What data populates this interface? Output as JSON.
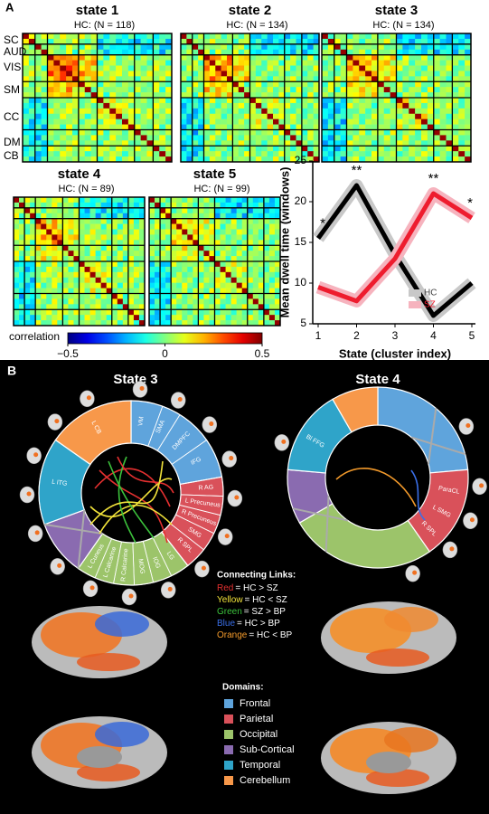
{
  "panel_a": {
    "label": "A",
    "states": [
      {
        "title": "state 1",
        "subtitle": "HC: (N = 118)"
      },
      {
        "title": "state 2",
        "subtitle": "HC: (N = 134)"
      },
      {
        "title": "state 3",
        "subtitle": "HC: (N = 134)"
      },
      {
        "title": "state 4",
        "subtitle": "HC: (N = 89)"
      },
      {
        "title": "state 5",
        "subtitle": "HC: (N = 99)"
      }
    ],
    "row_labels": [
      "SC",
      "AUD",
      "VIS",
      "SM",
      "CC",
      "DM",
      "CB"
    ],
    "colorbar": {
      "title": "correlation",
      "lim": [
        -0.5,
        0.5
      ],
      "ticks": [
        {
          "value": -0.5,
          "label": "−0.5"
        },
        0,
        0.5
      ]
    }
  },
  "chart_data": {
    "type": "line",
    "ylabel": "Mean dwell time (windows)",
    "xlabel": "State (cluster index)",
    "x": [
      1,
      2,
      3,
      4,
      5
    ],
    "xlim": [
      1,
      5
    ],
    "xticks": [
      1,
      2,
      3,
      4,
      5
    ],
    "ylim": [
      5,
      25
    ],
    "yticks": [
      5,
      10,
      15,
      20,
      25
    ],
    "series": [
      {
        "name": "HC",
        "color": "#000000",
        "band_color": "#c8c8c8",
        "values": [
          15.5,
          22,
          13.5,
          6,
          10
        ]
      },
      {
        "name": "SZ",
        "color": "#ee1c2e",
        "band_color": "#f6b3be",
        "values": [
          9.5,
          7.8,
          13,
          21,
          18
        ]
      }
    ],
    "significance": [
      "*",
      "**",
      null,
      "**",
      "*"
    ],
    "legend": "lower right"
  },
  "panel_b": {
    "label": "B",
    "states": [
      {
        "title": "State 3",
        "segments": [
          "VM",
          "SMA",
          "DMPFC",
          "IFG",
          "R AG",
          "L Precuneus",
          "R Precuneus",
          "SMG",
          "R SPL",
          "LG",
          "IOG",
          "MOG",
          "R Calcarine",
          "L Calcarine",
          "L Cuneus",
          "L ITG",
          "L CB"
        ]
      },
      {
        "title": "State 4",
        "segments": [
          "ParaCL",
          "L SMG",
          "R SPL",
          "Bl FFG"
        ]
      }
    ],
    "links": {
      "title": "Connecting Links:",
      "items": [
        {
          "color_word": "Red",
          "text": "= HC > SZ",
          "color": "#e53030"
        },
        {
          "color_word": "Yellow",
          "text": "= HC < SZ",
          "color": "#f2e33a"
        },
        {
          "color_word": "Green",
          "text": "= SZ > BP",
          "color": "#3cc23c"
        },
        {
          "color_word": "Blue",
          "text": "= HC > BP",
          "color": "#3a6fe8"
        },
        {
          "color_word": "Orange",
          "text": "= HC < BP",
          "color": "#f39a2b"
        }
      ]
    },
    "domains": {
      "title": "Domains:",
      "items": [
        {
          "name": "Frontal",
          "color": "#5fa4dc"
        },
        {
          "name": "Parietal",
          "color": "#d9515a"
        },
        {
          "name": "Occipital",
          "color": "#9cc46a"
        },
        {
          "name": "Sub-Cortical",
          "color": "#8a6bb0"
        },
        {
          "name": "Temporal",
          "color": "#2fa4c9"
        },
        {
          "name": "Cerebellum",
          "color": "#f7984a"
        }
      ]
    }
  }
}
